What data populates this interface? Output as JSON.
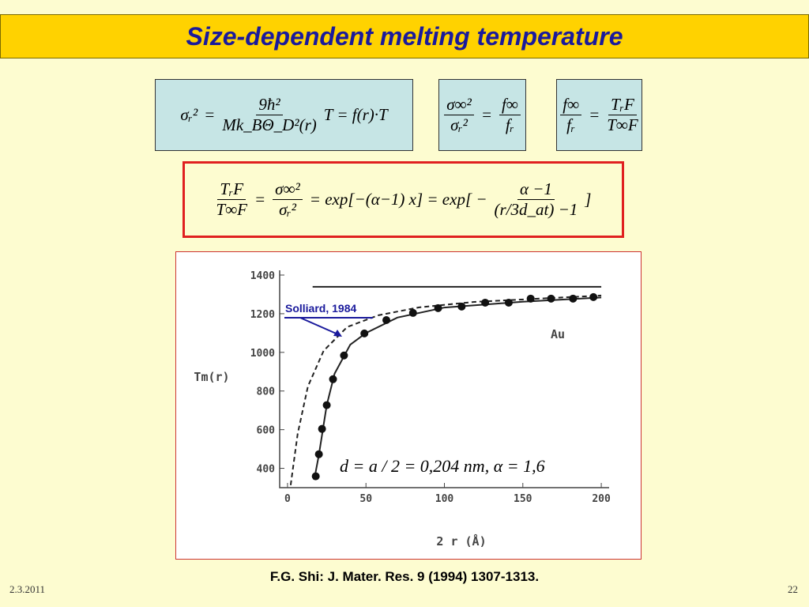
{
  "header": {
    "title": "Size-dependent melting temperature"
  },
  "formulas": [
    {
      "terms": [
        "σᵣ²",
        "=",
        {
          "num": "9ħ²",
          "den": "Mk_BΘ_D²(r)"
        },
        "T = f(r)·T"
      ]
    },
    {
      "terms": [
        {
          "num": "σ∞²",
          "den": "σᵣ²"
        },
        "=",
        {
          "num": "f∞",
          "den": "fᵣ"
        }
      ]
    },
    {
      "terms": [
        {
          "num": "f∞",
          "den": "fᵣ"
        },
        "=",
        {
          "num": "TᵣF",
          "den": "T∞F"
        }
      ]
    },
    {
      "terms": [
        {
          "num": "TᵣF",
          "den": "T∞F"
        },
        "=",
        {
          "num": "σ∞²",
          "den": "σᵣ²"
        },
        "= exp[−(α−1) x] = exp[ −",
        {
          "num": "α −1",
          "den": "(r/3d_at) −1"
        },
        "]"
      ]
    }
  ],
  "chart_data": {
    "type": "scatter",
    "y_label": "Tm(r)",
    "x_label": "2 r (Å)",
    "xlim": [
      -5,
      205
    ],
    "ylim": [
      300,
      1400
    ],
    "xticks": [
      0,
      50,
      100,
      150,
      200
    ],
    "yticks": [
      400,
      600,
      800,
      1000,
      1200,
      1400
    ],
    "series": [
      {
        "style": "line",
        "color": "#222222",
        "x": [
          16,
          200
        ],
        "values": [
          1339,
          1339
        ]
      },
      {
        "name": "Solliard, 1984",
        "style": "dashed",
        "color": "#222222",
        "x": [
          2,
          6.5,
          13,
          23,
          38,
          58,
          84,
          119,
          170,
          200
        ],
        "values": [
          313,
          580,
          824,
          1008,
          1131,
          1192,
          1233,
          1261,
          1282,
          1294
        ]
      },
      {
        "style": "line",
        "color": "#222222",
        "x": [
          17,
          20,
          25,
          30,
          40,
          50,
          70,
          100,
          150,
          200
        ],
        "values": [
          340,
          470,
          727,
          890,
          1040,
          1100,
          1180,
          1232,
          1262,
          1284
        ]
      },
      {
        "style": "markers",
        "color": "#111111",
        "x": [
          18,
          20,
          22,
          25,
          29,
          36,
          49,
          63,
          80,
          96,
          111,
          126,
          141,
          155,
          168,
          182,
          195
        ],
        "values": [
          359,
          473,
          604,
          727,
          861,
          984,
          1098,
          1167,
          1204,
          1229,
          1237,
          1257,
          1257,
          1278,
          1278,
          1278,
          1286
        ]
      }
    ],
    "annotations": [
      "Au",
      "d = a / 2 = 0,204 nm, α = 1,6"
    ]
  },
  "citation": "F.G. Shi: J. Mater. Res. 9 (1994) 1307-1313.",
  "footer": {
    "date": "2.3.2011",
    "page": "22"
  }
}
